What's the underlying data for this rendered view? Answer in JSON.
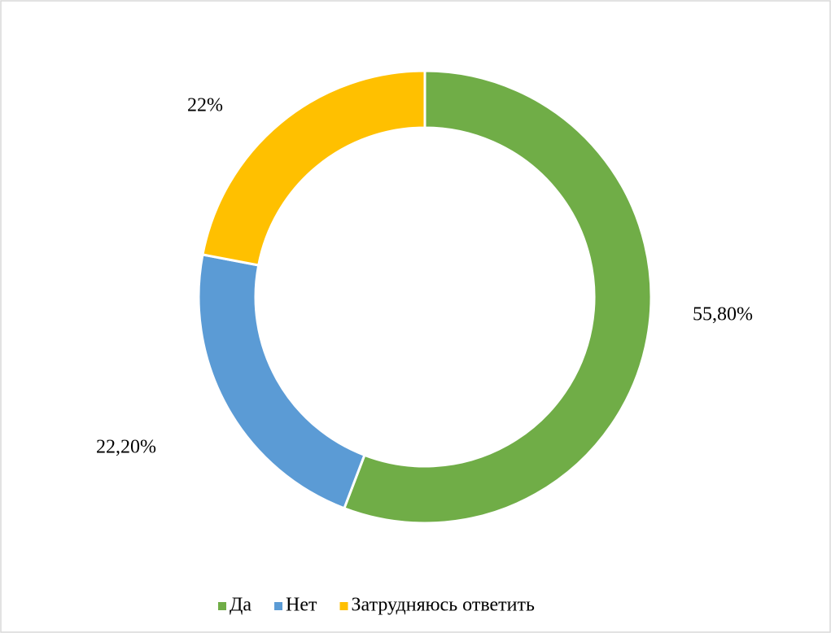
{
  "chart_data": {
    "type": "donut",
    "categories": [
      "Да",
      "Нет",
      "Затрудняюсь ответить"
    ],
    "values": [
      55.8,
      22.2,
      22
    ],
    "value_labels": [
      "55,80%",
      "22,20%",
      "22%"
    ],
    "colors": [
      "#70ad47",
      "#5b9bd5",
      "#ffc000"
    ],
    "legend": "bottom"
  }
}
